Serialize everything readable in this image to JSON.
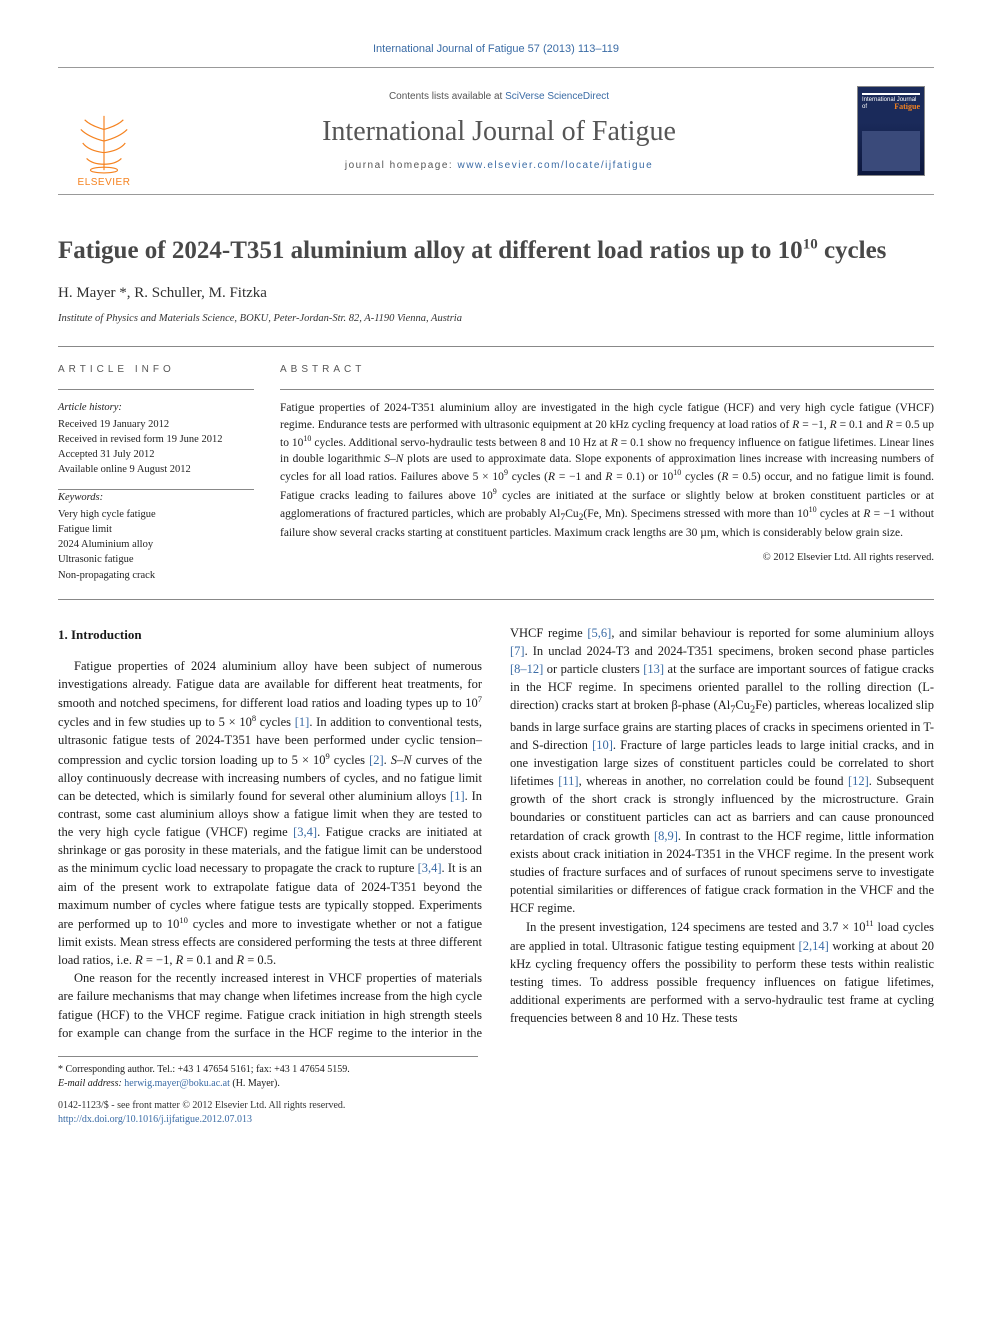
{
  "journal_ref": "International Journal of Fatigue 57 (2013) 113–119",
  "masthead": {
    "contents_prefix": "Contents lists available at ",
    "contents_link": "SciVerse ScienceDirect",
    "journal_title": "International Journal of Fatigue",
    "homepage_prefix": "journal homepage: ",
    "homepage_url": "www.elsevier.com/locate/ijfatigue",
    "publisher_label": "ELSEVIER",
    "cover_small_text": "International Journal of",
    "cover_accent_text": "Fatigue"
  },
  "article": {
    "title_pre": "Fatigue of 2024-T351 aluminium alloy at different load ratios up to 10",
    "title_sup": "10",
    "title_post": " cycles",
    "authors": "H. Mayer *, R. Schuller, M. Fitzka",
    "affiliation": "Institute of Physics and Materials Science, BOKU, Peter-Jordan-Str. 82, A-1190 Vienna, Austria"
  },
  "info": {
    "label": "ARTICLE INFO",
    "history_head": "Article history:",
    "history_lines": [
      "Received 19 January 2012",
      "Received in revised form 19 June 2012",
      "Accepted 31 July 2012",
      "Available online 9 August 2012"
    ],
    "keywords_head": "Keywords:",
    "keywords": [
      "Very high cycle fatigue",
      "Fatigue limit",
      "2024 Aluminium alloy",
      "Ultrasonic fatigue",
      "Non-propagating crack"
    ]
  },
  "abstract": {
    "label": "ABSTRACT",
    "text_html": "Fatigue properties of 2024-T351 aluminium alloy are investigated in the high cycle fatigue (HCF) and very high cycle fatigue (VHCF) regime. Endurance tests are performed with ultrasonic equipment at 20 kHz cycling frequency at load ratios of <span class='ital'>R</span> = −1, <span class='ital'>R</span> = 0.1 and <span class='ital'>R</span> = 0.5 up to 10<sup>10</sup> cycles. Additional servo-hydraulic tests between 8 and 10 Hz at <span class='ital'>R</span> = 0.1 show no frequency influence on fatigue lifetimes. Linear lines in double logarithmic <span class='ital'>S–N</span> plots are used to approximate data. Slope exponents of approximation lines increase with increasing numbers of cycles for all load ratios. Failures above 5 × 10<sup>9</sup> cycles (<span class='ital'>R</span> = −1 and <span class='ital'>R</span> = 0.1) or 10<sup>10</sup> cycles (<span class='ital'>R</span> = 0.5) occur, and no fatigue limit is found. Fatigue cracks leading to failures above 10<sup>9</sup> cycles are initiated at the surface or slightly below at broken constituent particles or at agglomerations of fractured particles, which are probably Al<sub>7</sub>Cu<sub>2</sub>(Fe, Mn). Specimens stressed with more than 10<sup>10</sup> cycles at <span class='ital'>R</span> = −1 without failure show several cracks starting at constituent particles. Maximum crack lengths are 30 µm, which is considerably below grain size.",
    "copyright": "© 2012 Elsevier Ltd. All rights reserved."
  },
  "body": {
    "heading": "1. Introduction",
    "p1_html": "Fatigue properties of 2024 aluminium alloy have been subject of numerous investigations already. Fatigue data are available for different heat treatments, for smooth and notched specimens, for different load ratios and loading types up to 10<sup>7</sup> cycles and in few studies up to 5 × 10<sup>8</sup> cycles <span class='ref'>[1]</span>. In addition to conventional tests, ultrasonic fatigue tests of 2024-T351 have been performed under cyclic tension–compression and cyclic torsion loading up to 5 × 10<sup>9</sup> cycles <span class='ref'>[2]</span>. <span class='ital'>S–N</span> curves of the alloy continuously decrease with increasing numbers of cycles, and no fatigue limit can be detected, which is similarly found for several other aluminium alloys <span class='ref'>[1]</span>. In contrast, some cast aluminium alloys show a fatigue limit when they are tested to the very high cycle fatigue (VHCF) regime <span class='ref'>[3,4]</span>. Fatigue cracks are initiated at shrinkage or gas porosity in these materials, and the fatigue limit can be understood as the minimum cyclic load necessary to propagate the crack to rupture <span class='ref'>[3,4]</span>. It is an aim of the present work to extrapolate fatigue data of 2024-T351 beyond the maximum number of cycles where fatigue tests are typically stopped. Experiments are performed up to 10<sup>10</sup> cycles and more to investigate whether or not a fatigue limit exists. Mean stress effects are considered performing the tests at three different load ratios, i.e. <span class='ital'>R</span> = −1, <span class='ital'>R</span> = 0.1 and <span class='ital'>R</span> = 0.5.",
    "p2_html": "One reason for the recently increased interest in VHCF properties of materials are failure mechanisms that may change when lifetimes increase from the high cycle fatigue (HCF) to the VHCF regime. Fatigue crack initiation in high strength steels for example can change from the surface in the HCF regime to the interior in the VHCF regime <span class='ref'>[5,6]</span>, and similar behaviour is reported for some aluminium alloys <span class='ref'>[7]</span>. In unclad 2024-T3 and 2024-T351 specimens, broken second phase particles <span class='ref'>[8–12]</span> or particle clusters <span class='ref'>[13]</span> at the surface are important sources of fatigue cracks in the HCF regime. In specimens oriented parallel to the rolling direction (L-direction) cracks start at broken β-phase (Al<sub>7</sub>Cu<sub>2</sub>Fe) particles, whereas localized slip bands in large surface grains are starting places of cracks in specimens oriented in T- and S-direction <span class='ref'>[10]</span>. Fracture of large particles leads to large initial cracks, and in one investigation large sizes of constituent particles could be correlated to short lifetimes <span class='ref'>[11]</span>, whereas in another, no correlation could be found <span class='ref'>[12]</span>. Subsequent growth of the short crack is strongly influenced by the microstructure. Grain boundaries or constituent particles can act as barriers and can cause pronounced retardation of crack growth <span class='ref'>[8,9]</span>. In contrast to the HCF regime, little information exists about crack initiation in 2024-T351 in the VHCF regime. In the present work studies of fracture surfaces and of surfaces of runout specimens serve to investigate potential similarities or differences of fatigue crack formation in the VHCF and the HCF regime.",
    "p3_html": "In the present investigation, 124 specimens are tested and 3.7 × 10<sup>11</sup> load cycles are applied in total. Ultrasonic fatigue testing equipment <span class='ref'>[2,14]</span> working at about 20 kHz cycling frequency offers the possibility to perform these tests within realistic testing times. To address possible frequency influences on fatigue lifetimes, additional experiments are performed with a servo-hydraulic test frame at cycling frequencies between 8 and 10 Hz. These tests"
  },
  "footnotes": {
    "corr": "* Corresponding author. Tel.: +43 1 47654 5161; fax: +43 1 47654 5159.",
    "email_label": "E-mail address:",
    "email": "herwig.mayer@boku.ac.at",
    "email_who": "(H. Mayer)."
  },
  "bottom": {
    "left_line1": "0142-1123/$ - see front matter © 2012 Elsevier Ltd. All rights reserved.",
    "left_line2_url": "http://dx.doi.org/10.1016/j.ijfatigue.2012.07.013"
  },
  "colors": {
    "link": "#3a6ba5",
    "orange": "#f5821f",
    "heading_grey": "#484848"
  }
}
